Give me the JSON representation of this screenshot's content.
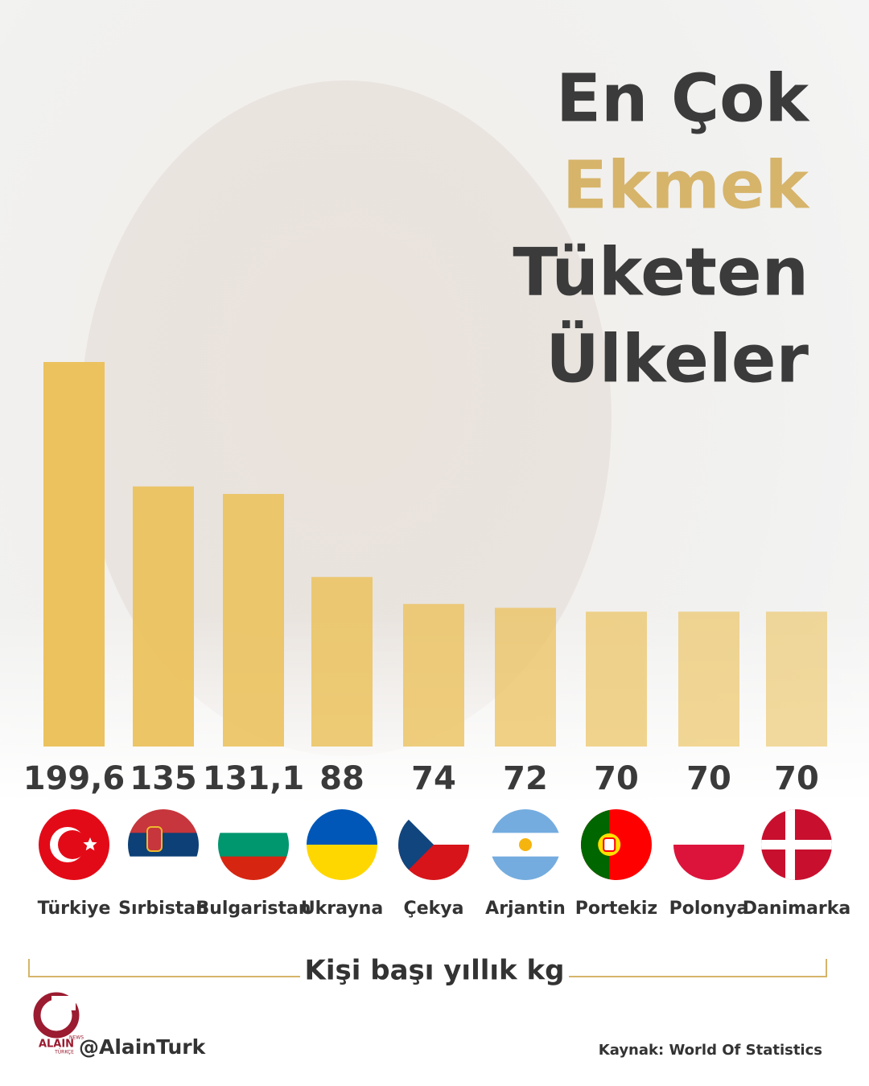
{
  "chart_data": {
    "type": "bar",
    "title_lines": [
      "En Çok",
      "Ekmek",
      "Tüketen",
      "Ülkeler"
    ],
    "title_colors": [
      "#3b3b3b",
      "#d6b46a",
      "#3b3b3b",
      "#3b3b3b"
    ],
    "categories": [
      "Türkiye",
      "Sırbistan",
      "Bulgaristan",
      "Ukrayna",
      "Çekya",
      "Arjantin",
      "Portekiz",
      "Polonya",
      "Danimarka"
    ],
    "values": [
      199.6,
      135,
      131.1,
      88,
      74,
      72,
      70,
      70,
      70
    ],
    "value_labels": [
      "199,6",
      "135",
      "131,1",
      "88",
      "74",
      "72",
      "70",
      "70",
      "70"
    ],
    "color": "#ebc25e",
    "unit_label": "Kişi başı yıllık kg",
    "source": "Kaynak: World Of Statistics"
  },
  "branding": {
    "logo": "ALAIN",
    "logo_tag": "NEWS",
    "logo_sub": "TÜRKÇE",
    "handle": "@AlainTurk"
  }
}
